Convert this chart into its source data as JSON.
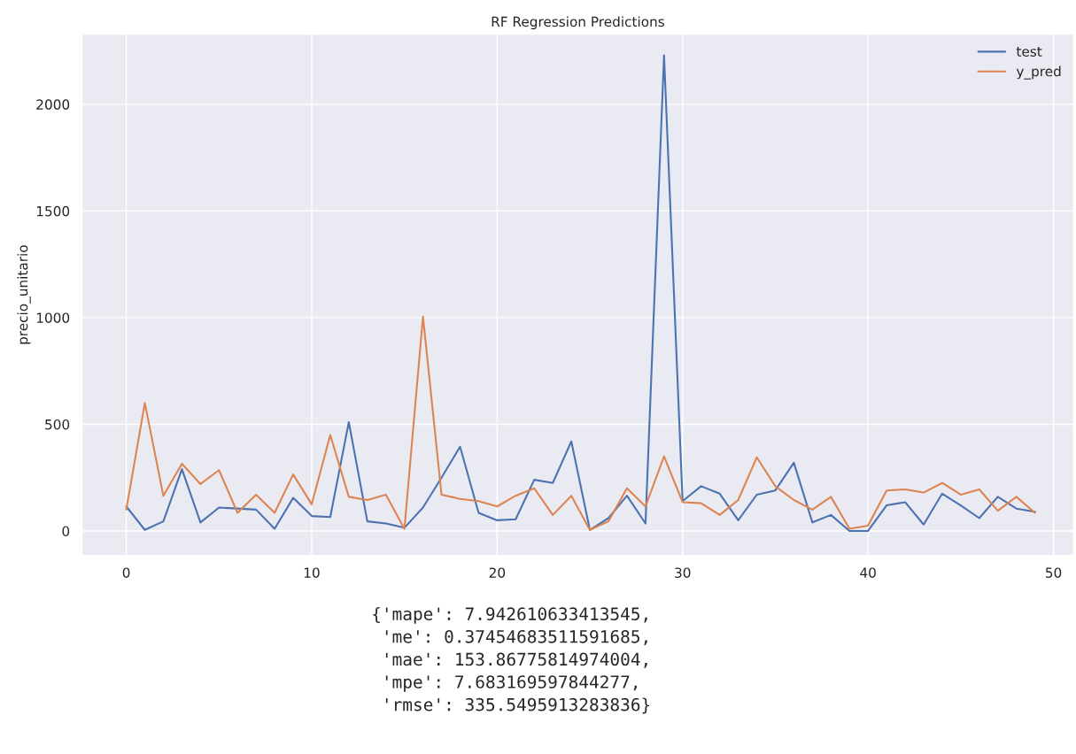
{
  "chart_data": {
    "type": "line",
    "title": "RF Regression Predictions",
    "ylabel": "precio_unitario",
    "x": [
      0,
      1,
      2,
      3,
      4,
      5,
      6,
      7,
      8,
      9,
      10,
      11,
      12,
      13,
      14,
      15,
      16,
      17,
      18,
      19,
      20,
      21,
      22,
      23,
      24,
      25,
      26,
      27,
      28,
      29,
      30,
      31,
      32,
      33,
      34,
      35,
      36,
      37,
      38,
      39,
      40,
      41,
      42,
      43,
      44,
      45,
      46,
      47,
      48,
      49
    ],
    "series": [
      {
        "name": "test",
        "color": "#4c72b0",
        "values": [
          115,
          5,
          45,
          290,
          40,
          110,
          105,
          100,
          10,
          155,
          70,
          65,
          510,
          45,
          35,
          15,
          110,
          250,
          395,
          85,
          50,
          55,
          240,
          225,
          420,
          5,
          60,
          165,
          35,
          2230,
          140,
          210,
          175,
          50,
          170,
          190,
          320,
          40,
          75,
          0,
          0,
          120,
          135,
          30,
          175,
          120,
          60,
          160,
          105,
          90
        ]
      },
      {
        "name": "y_pred",
        "color": "#dd8452",
        "values": [
          100,
          600,
          165,
          315,
          220,
          285,
          85,
          170,
          85,
          265,
          125,
          450,
          160,
          145,
          170,
          10,
          1005,
          170,
          150,
          140,
          115,
          165,
          200,
          75,
          165,
          5,
          45,
          200,
          115,
          350,
          135,
          130,
          75,
          145,
          345,
          210,
          145,
          100,
          160,
          10,
          25,
          190,
          195,
          180,
          225,
          170,
          195,
          95,
          160,
          85
        ]
      }
    ],
    "xlim": [
      -2.4,
      51.1
    ],
    "xticks": [
      0,
      10,
      20,
      30,
      40,
      50
    ],
    "ylim": [
      -116,
      2330
    ],
    "yticks": [
      0,
      500,
      1000,
      1500,
      2000
    ],
    "grid": true,
    "legend": "top right",
    "annotations": [
      "{'mape': 7.942610633413545,\n 'me': 0.37454683511591685,\n 'mae': 153.86775814974004,\n 'mpe': 7.683169597844277,\n 'rmse': 335.5495913283836}"
    ]
  }
}
